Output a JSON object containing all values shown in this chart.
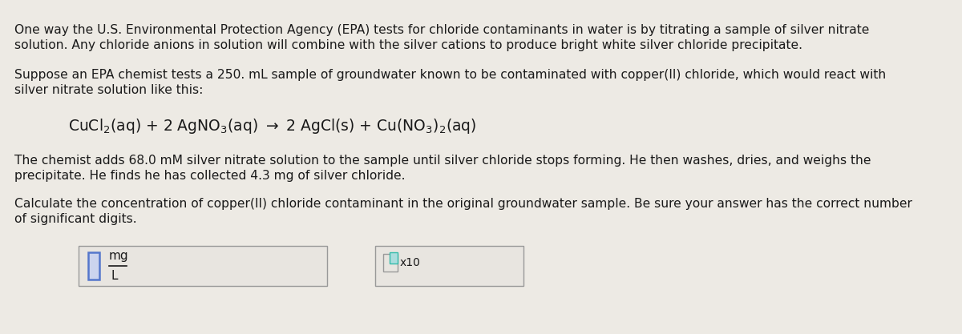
{
  "background_color": "#edeae4",
  "text_color": "#1a1a1a",
  "para1_line1": "One way the U.S. Environmental Protection Agency (EPA) tests for chloride contaminants in water is by titrating a sample of silver nitrate",
  "para1_line2": "solution. Any chloride anions in solution will combine with the silver cations to produce bright white silver chloride precipitate.",
  "para2_line1": "Suppose an EPA chemist tests a 250. mL sample of groundwater known to be contaminated with copper(II) chloride, which would react with",
  "para2_line2": "silver nitrate solution like this:",
  "eq_part1": "CuCl",
  "eq_sub1": "2",
  "eq_part2": "(aq) + 2 AgNO",
  "eq_sub2": "3",
  "eq_part3": "(aq) → 2 AgCl(s) + Cu",
  "eq_paren_open": "(",
  "eq_no3": "NO",
  "eq_sub3": "3",
  "eq_paren_close": ")",
  "eq_sub4": "2",
  "eq_part4": "(aq)",
  "para3_line1": "The chemist adds 68.0 mM silver nitrate solution to the sample until silver chloride stops forming. He then washes, dries, and weighs the",
  "para3_line2": "precipitate. He finds he has collected 4.3 mg of silver chloride.",
  "para4_line1": "Calculate the concentration of copper(II) chloride contaminant in the original groundwater sample. Be sure your answer has the correct number",
  "para4_line2": "of significant digits.",
  "unit_mg": "mg",
  "unit_L": "L",
  "x10_label": "x10"
}
